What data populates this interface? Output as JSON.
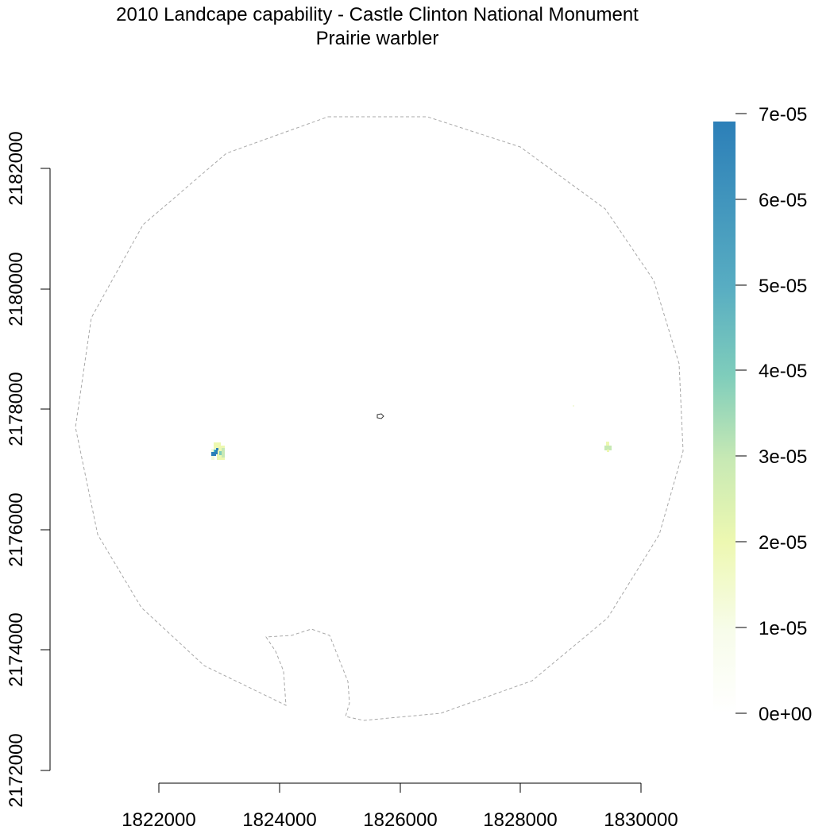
{
  "title": {
    "line1": "2010 Landcape capability - Castle Clinton National Monument",
    "line2": "Prairie warbler"
  },
  "map": {
    "x_axis": {
      "ticks": [
        "1822000",
        "1824000",
        "1826000",
        "1828000",
        "1830000"
      ]
    },
    "y_axis": {
      "ticks": [
        "2172000",
        "2174000",
        "2176000",
        "2178000",
        "2180000",
        "2182000"
      ]
    },
    "boundary_style": "dashed grey outline",
    "features": [
      {
        "name": "western-patch",
        "x": 1822950,
        "y": 2177300,
        "value_max": 7e-05
      },
      {
        "name": "eastern-patch",
        "x": 1829450,
        "y": 2177350,
        "value_max": 3e-05
      },
      {
        "name": "park-polygon",
        "x": 1825650,
        "y": 2177900
      }
    ]
  },
  "legend": {
    "labels": [
      "7e-05",
      "6e-05",
      "5e-05",
      "4e-05",
      "3e-05",
      "2e-05",
      "1e-05",
      "0e+00"
    ],
    "range": [
      0,
      7e-05
    ],
    "colors": [
      "#ffffff",
      "#f3fadc",
      "#edf8b1",
      "#c7e9b4",
      "#7fcdbb",
      "#41b6c4",
      "#2c7fb8"
    ]
  }
}
